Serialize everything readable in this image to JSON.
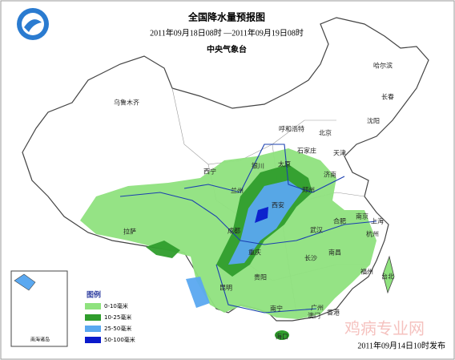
{
  "header": {
    "title": "全国降水量预报图",
    "period": "2011年09月18日08时 —2011年09月19日08时",
    "issuer": "中央气象台"
  },
  "cities": [
    "乌鲁木齐",
    "哈尔滨",
    "长春",
    "沈阳",
    "呼和浩特",
    "北京",
    "天津",
    "石家庄",
    "太原",
    "济南",
    "银川",
    "西宁",
    "兰州",
    "西安",
    "郑州",
    "合肥",
    "南京",
    "上海",
    "武汉",
    "杭州",
    "拉萨",
    "成都",
    "重庆",
    "贵阳",
    "长沙",
    "南昌",
    "福州",
    "昆明",
    "南宁",
    "广州",
    "台北",
    "香港",
    "澳门",
    "海口"
  ],
  "legend": {
    "title": "图例",
    "items": [
      {
        "label": "0-10毫米",
        "color": "#8fe27e"
      },
      {
        "label": "10-25毫米",
        "color": "#2f9d2c"
      },
      {
        "label": "25-50毫米",
        "color": "#5aa8f0"
      },
      {
        "label": "50-100毫米",
        "color": "#0a1acb"
      }
    ]
  },
  "inset": {
    "label": "南海诸岛"
  },
  "footer": "2011年09月14日10时发布",
  "watermark": "鸡病专业网"
}
